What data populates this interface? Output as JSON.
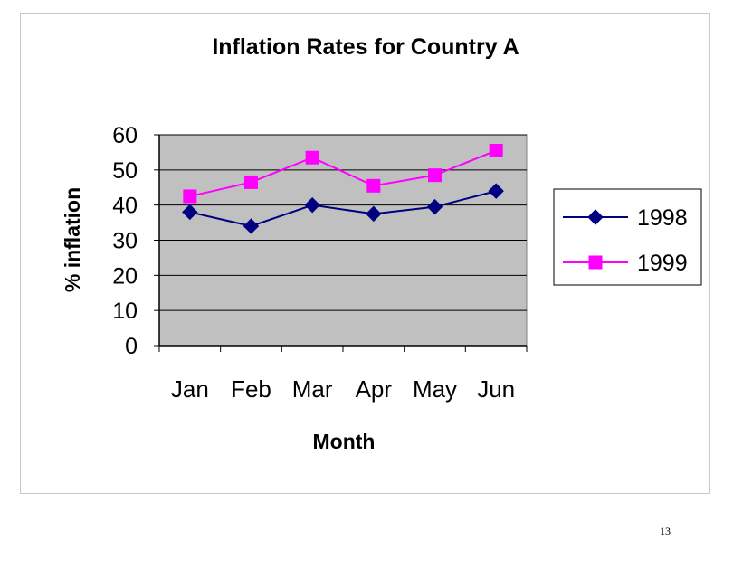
{
  "chart_data": {
    "type": "line",
    "title": "Inflation Rates for Country A",
    "xlabel": "Month",
    "ylabel": "% inflation",
    "categories": [
      "Jan",
      "Feb",
      "Mar",
      "Apr",
      "May",
      "Jun"
    ],
    "ylim": [
      0,
      60
    ],
    "yticks": [
      "0",
      "10",
      "20",
      "30",
      "40",
      "50",
      "60"
    ],
    "grid": true,
    "legend": "right",
    "series": [
      {
        "name": "1998",
        "values": [
          38,
          34,
          40,
          37.5,
          39.5,
          44
        ],
        "color": "#000080",
        "marker": "diamond"
      },
      {
        "name": "1999",
        "values": [
          42.5,
          46.5,
          53.5,
          45.5,
          48.5,
          55.5
        ],
        "color": "#ff00ff",
        "marker": "square"
      }
    ],
    "plot_background": "#c0c0c0"
  },
  "page": {
    "slide_number": "13"
  }
}
